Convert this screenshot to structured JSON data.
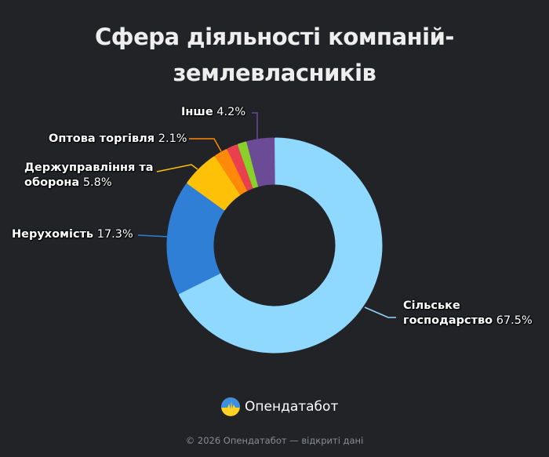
{
  "title_line1": "Сфера діяльності компаній-",
  "title_line2": "землевласників",
  "chart_data": {
    "type": "pie",
    "variant": "donut",
    "title": "Сфера діяльності компаній-землевласників",
    "start_angle_deg": 0,
    "direction": "clockwise",
    "slices": [
      {
        "label": "Сільське господарство",
        "value": 67.5,
        "display": "67.5%",
        "color": "#8fd8ff"
      },
      {
        "label": "Нерухомість",
        "value": 17.3,
        "display": "17.3%",
        "color": "#2f7fd6"
      },
      {
        "label": "Держуправління та оборона",
        "value": 5.8,
        "display": "5.8%",
        "color": "#ffc107"
      },
      {
        "label": "Оптова торгівля",
        "value": 2.1,
        "display": "2.1%",
        "color": "#ff8a0a"
      },
      {
        "label": "",
        "value": 1.7,
        "display": "",
        "color": "#e8404e"
      },
      {
        "label": "",
        "value": 1.4,
        "display": "",
        "color": "#8bcf2a"
      },
      {
        "label": "Інше",
        "value": 4.2,
        "display": "4.2%",
        "color": "#6c4b96"
      }
    ]
  },
  "labels": {
    "agri_line1": "Сільське",
    "agri_name": "господарство",
    "agri_pct": "67.5%",
    "realty_name": "Нерухомість",
    "realty_pct": "17.3%",
    "gov_line1": "Держуправління та",
    "gov_name": "оборона",
    "gov_pct": "5.8%",
    "trade_name": "Оптова торгівля",
    "trade_pct": "2.1%",
    "other_name": "Інше",
    "other_pct": "4.2%"
  },
  "brand": {
    "name": "Опендатабот",
    "logo_icon": "opendatabot-logo-icon"
  },
  "footer": "© 2026 Опендатабот — відкриті дані"
}
